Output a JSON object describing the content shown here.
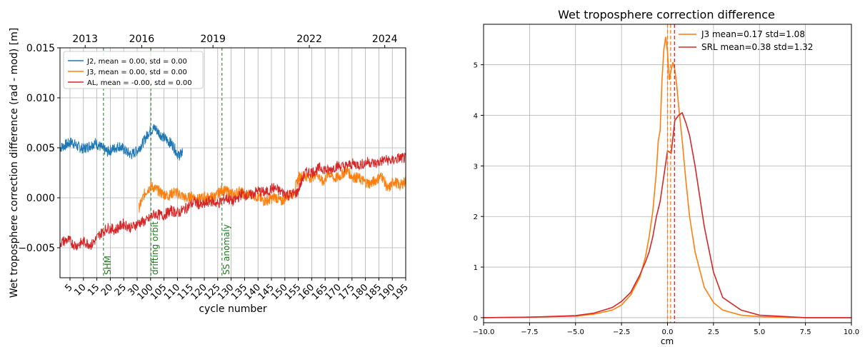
{
  "chart_data": [
    {
      "type": "line",
      "title": "",
      "ylabel": "Wet troposphere correction  difference (rad - mod) [m]",
      "xlabel": "cycle number",
      "xticks": [
        "5",
        "10",
        "15",
        "20",
        "25",
        "30",
        "100",
        "105",
        "110",
        "115",
        "120",
        "125",
        "130",
        "135",
        "140",
        "145",
        "150",
        "155",
        "160",
        "165",
        "170",
        "175",
        "180",
        "185",
        "190",
        "195"
      ],
      "x2_ticks": [
        "2013",
        "2016",
        "2019",
        "2022",
        "2024"
      ],
      "yticks": [
        "0.015",
        "0.010",
        "0.005",
        "0.000",
        "−0.005"
      ],
      "ylim": [
        -0.008,
        0.015
      ],
      "grid": true,
      "legend_position": "upper-left",
      "series": [
        {
          "name": "J2, mean = 0.00, std = 0.00",
          "color": "#1f77b4",
          "x": [
            0,
            3,
            6,
            9,
            12,
            15,
            18,
            21,
            24,
            27,
            30,
            33,
            36,
            39,
            42,
            45,
            48,
            51,
            54,
            57,
            60,
            62
          ],
          "values": [
            0.005,
            0.0053,
            0.0056,
            0.0051,
            0.0049,
            0.0052,
            0.0055,
            0.005,
            0.0046,
            0.0049,
            0.0052,
            0.0047,
            0.0043,
            0.0047,
            0.0055,
            0.0066,
            0.007,
            0.0063,
            0.0058,
            0.0053,
            0.0042,
            0.0045
          ]
        },
        {
          "name": "J3, mean = 0.00, std = 0.00",
          "color": "#ff7f0e",
          "x": [
            40,
            43,
            46,
            49,
            52,
            55,
            58,
            61,
            64,
            67,
            70,
            73,
            76,
            79,
            82,
            85,
            88,
            91,
            94,
            97,
            100,
            103,
            106,
            109,
            112,
            115,
            118,
            121,
            124,
            127,
            130,
            133,
            136,
            139,
            142,
            145,
            148,
            151,
            154,
            157,
            160,
            163,
            166,
            169,
            172,
            175
          ],
          "values": [
            -0.001,
            0.0005,
            0.0012,
            0.0008,
            0.0004,
            0.0002,
            0.0006,
            0.0003,
            -0.0001,
            0.0002,
            -0.0002,
            0.0001,
            0.0,
            0.0002,
            0.0008,
            0.0006,
            0.0003,
            0.0007,
            0.0002,
            0.0004,
            0.0001,
            -0.0003,
            -0.0002,
            0.0001,
            -0.0004,
            0.0002,
            0.0004,
            0.0021,
            0.0022,
            0.002,
            0.0025,
            0.0015,
            0.0025,
            0.0019,
            0.0022,
            0.0028,
            0.0021,
            0.002,
            0.0016,
            0.0014,
            0.0018,
            0.0022,
            0.0008,
            0.0017,
            0.0012,
            0.0017
          ]
        },
        {
          "name": "AL, mean = -0.00, std = 0.00",
          "color": "#d62728",
          "x": [
            0,
            4,
            8,
            12,
            16,
            20,
            24,
            28,
            32,
            36,
            40,
            44,
            48,
            52,
            56,
            60,
            64,
            68,
            72,
            76,
            80,
            84,
            88,
            92,
            96,
            100,
            104,
            108,
            112,
            116,
            120,
            124,
            128,
            132,
            136,
            140,
            144,
            148,
            152,
            156,
            160,
            164,
            168,
            172,
            175
          ],
          "values": [
            -0.0045,
            -0.0042,
            -0.0048,
            -0.0044,
            -0.0047,
            -0.0037,
            -0.003,
            -0.0032,
            -0.0026,
            -0.003,
            -0.0025,
            -0.0023,
            -0.0016,
            -0.0018,
            -0.0013,
            -0.0015,
            -0.001,
            -0.0004,
            -0.0008,
            -0.0003,
            -0.0006,
            0.0,
            -0.0004,
            0.0004,
            0.0002,
            0.0007,
            0.0005,
            0.001,
            0.0006,
            0.0003,
            0.0005,
            0.0025,
            0.0026,
            0.003,
            0.0027,
            0.0032,
            0.0031,
            0.0034,
            0.0033,
            0.0036,
            0.0034,
            0.0038,
            0.0037,
            0.004,
            0.0039
          ]
        }
      ],
      "event_lines": [
        {
          "x": 22,
          "label": "SHM"
        },
        {
          "x": 46,
          "label": "drifting orbit"
        },
        {
          "x": 82,
          "label": "SS anomaly"
        }
      ]
    },
    {
      "type": "line",
      "title": "Wet troposphere correction difference",
      "xlabel": "cm",
      "ylabel": "",
      "xlim": [
        -10,
        10
      ],
      "ylim": [
        -0.1,
        5.8
      ],
      "xticks": [
        "−10.0",
        "−7.5",
        "−5.0",
        "−2.5",
        "0.0",
        "2.5",
        "5.0",
        "7.5",
        "10.0"
      ],
      "yticks": [
        "0",
        "1",
        "2",
        "3",
        "4",
        "5"
      ],
      "grid": true,
      "legend_position": "upper-right",
      "series": [
        {
          "name": "J3  mean=0.17 std=1.08",
          "color": "#ff7f0e",
          "x": [
            -10,
            -7.5,
            -5,
            -4,
            -3,
            -2.5,
            -2,
            -1.5,
            -1.2,
            -1,
            -0.8,
            -0.6,
            -0.5,
            -0.4,
            -0.3,
            -0.2,
            -0.1,
            0,
            0.1,
            0.2,
            0.3,
            0.4,
            0.5,
            0.6,
            0.8,
            1,
            1.2,
            1.5,
            2,
            2.5,
            3,
            4,
            5,
            7.5,
            10
          ],
          "values": [
            0,
            0.01,
            0.03,
            0.07,
            0.15,
            0.25,
            0.45,
            0.8,
            1.2,
            1.6,
            2.1,
            2.9,
            3.5,
            3.7,
            4.7,
            5.3,
            5.55,
            5.25,
            4.7,
            4.9,
            5.05,
            4.9,
            4.6,
            4.2,
            3.5,
            2.7,
            2.0,
            1.3,
            0.6,
            0.3,
            0.15,
            0.05,
            0.02,
            0.0,
            0.0
          ]
        },
        {
          "name": "SRL mean=0.38 std=1.32",
          "color": "#d62728",
          "x": [
            -10,
            -7.5,
            -5,
            -4,
            -3,
            -2.5,
            -2,
            -1.5,
            -1.2,
            -1,
            -0.8,
            -0.6,
            -0.4,
            -0.2,
            0,
            0.2,
            0.4,
            0.6,
            0.8,
            1.0,
            1.2,
            1.5,
            2,
            2.5,
            3,
            4,
            5,
            7.5,
            10
          ],
          "values": [
            0,
            0.01,
            0.04,
            0.09,
            0.2,
            0.32,
            0.5,
            0.85,
            1.1,
            1.3,
            1.6,
            2.0,
            2.3,
            2.8,
            3.3,
            3.25,
            3.9,
            4.0,
            4.05,
            3.85,
            3.6,
            3.0,
            1.8,
            0.9,
            0.4,
            0.15,
            0.05,
            0.0,
            0.0
          ]
        }
      ],
      "vlines": [
        {
          "x": 0.0,
          "color": "#ff7f0e"
        },
        {
          "x": 0.17,
          "color": "#ff7f0e"
        },
        {
          "x": 0.38,
          "color": "#d62728"
        }
      ]
    }
  ]
}
